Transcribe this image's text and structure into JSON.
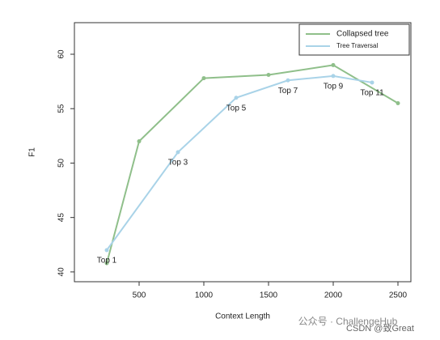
{
  "chart_data": {
    "type": "line",
    "x_label": "Context Length",
    "y_label": "F1",
    "xlim": [
      0,
      2600
    ],
    "xticks": [
      500,
      1000,
      1500,
      2000,
      2500
    ],
    "ylim": [
      39.1,
      62.9
    ],
    "yticks": [
      40,
      45,
      50,
      55,
      60
    ],
    "legend": "top-right",
    "series": [
      {
        "name": "Collapsed tree",
        "color": "#8fbf8a",
        "x": [
          250,
          500,
          1000,
          1500,
          2000,
          2500
        ],
        "values": [
          40.8,
          52,
          57.8,
          58.1,
          59,
          55.5
        ]
      },
      {
        "name": "Tree Traversal",
        "color": "#a9d3e8",
        "x": [
          250,
          800,
          1250,
          1650,
          2000,
          2300
        ],
        "values": [
          42,
          51,
          56,
          57.6,
          58,
          57.4
        ],
        "point_labels": [
          "Top 1",
          "Top 3",
          "Top 5",
          "Top 7",
          "Top 9",
          "Top 11"
        ]
      }
    ]
  },
  "watermarks": [
    "公众号 · ChallengeHub",
    "CSDN @致Great"
  ]
}
